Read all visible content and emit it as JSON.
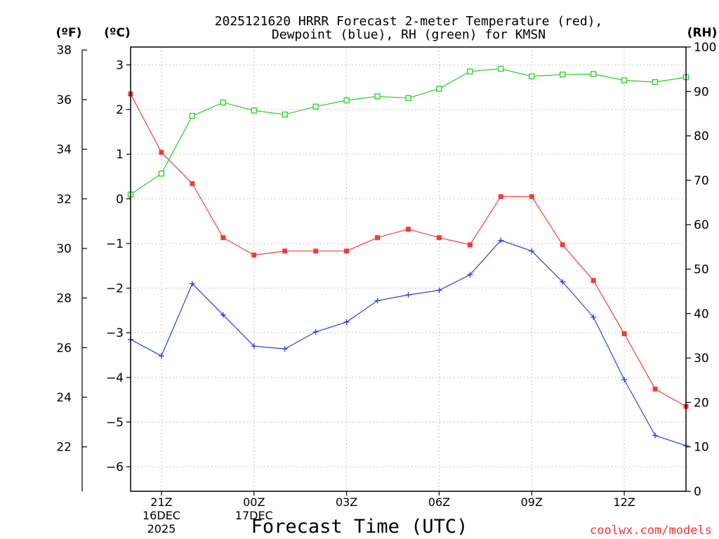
{
  "chart_data": {
    "type": "line",
    "title_line1": "2025121620 HRRR Forecast 2-meter Temperature (red),",
    "title_line2": "Dewpoint (blue), RH (green) for KMSN",
    "units": {
      "f": "(ºF)",
      "c": "(ºC)",
      "rh": "(RH)"
    },
    "xlabel": "Forecast Time (UTC)",
    "credit": "coolwx.com/models",
    "x_hours": [
      0,
      1,
      2,
      3,
      4,
      5,
      6,
      7,
      8,
      9,
      10,
      11,
      12,
      13,
      14,
      15,
      16,
      17,
      18
    ],
    "x_ticks": [
      {
        "hour": 1,
        "lines": [
          "21Z",
          "16DEC",
          "2025"
        ]
      },
      {
        "hour": 4,
        "lines": [
          "00Z",
          "17DEC"
        ]
      },
      {
        "hour": 7,
        "lines": [
          "03Z"
        ]
      },
      {
        "hour": 10,
        "lines": [
          "06Z"
        ]
      },
      {
        "hour": 13,
        "lines": [
          "09Z"
        ]
      },
      {
        "hour": 16,
        "lines": [
          "12Z"
        ]
      }
    ],
    "celsius_axis": {
      "min": -6.55,
      "max": 3.4,
      "ticks": [
        "-6",
        "-5",
        "-4",
        "-3",
        "-2",
        "-1",
        "0",
        "1",
        "2",
        "3"
      ]
    },
    "fahrenheit_axis": {
      "ticks": [
        "22",
        "24",
        "26",
        "28",
        "30",
        "32",
        "34",
        "36",
        "38"
      ]
    },
    "rh_axis": {
      "min": 0,
      "max": 100,
      "ticks": [
        "0",
        "10",
        "20",
        "30",
        "40",
        "50",
        "60",
        "70",
        "80",
        "90",
        "100"
      ]
    },
    "series": [
      {
        "name": "Temperature",
        "units": "C",
        "color": "#f03c3c",
        "marker": "filled-square",
        "values": [
          2.35,
          1.04,
          0.34,
          -0.87,
          -1.26,
          -1.17,
          -1.17,
          -1.17,
          -0.87,
          -0.68,
          -0.87,
          -1.03,
          0.05,
          0.05,
          -1.03,
          -1.83,
          -3.02,
          -4.26,
          -4.65
        ]
      },
      {
        "name": "Dewpoint",
        "units": "C",
        "color": "#2a3ce0",
        "marker": "plus",
        "values": [
          -3.15,
          -3.52,
          -1.9,
          -2.6,
          -3.3,
          -3.36,
          -2.98,
          -2.76,
          -2.28,
          -2.15,
          -2.05,
          -1.7,
          -0.93,
          -1.17,
          -1.86,
          -2.65,
          -4.05,
          -5.3,
          -5.53
        ]
      },
      {
        "name": "RH",
        "units": "%",
        "color": "#20d020",
        "marker": "open-square",
        "values": [
          66.8,
          71.5,
          84.5,
          87.5,
          85.7,
          84.8,
          86.6,
          88.0,
          88.9,
          88.5,
          90.6,
          94.5,
          95.1,
          93.4,
          93.8,
          93.9,
          92.5,
          92.1,
          93.2
        ]
      }
    ]
  }
}
